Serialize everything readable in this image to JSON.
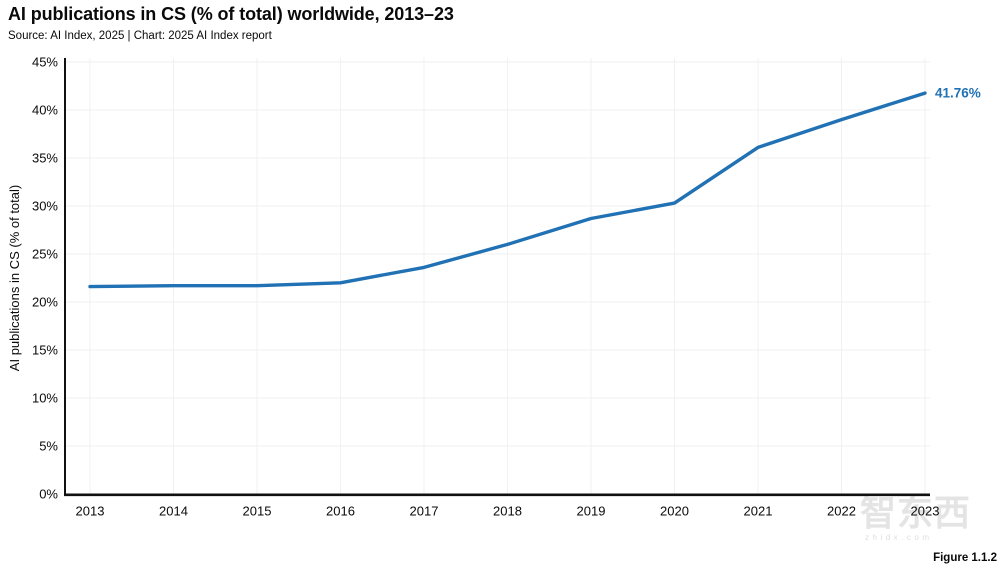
{
  "header": {
    "title": "AI publications in CS (% of total) worldwide, 2013–23",
    "source_line": "Source: AI Index, 2025 | Chart: 2025 AI Index report"
  },
  "chart_data": {
    "type": "line",
    "title": "AI publications in CS (% of total) worldwide, 2013–23",
    "x": [
      2013,
      2014,
      2015,
      2016,
      2017,
      2018,
      2019,
      2020,
      2021,
      2022,
      2023
    ],
    "series": [
      {
        "name": "AI publications in CS (% of total)",
        "values": [
          21.6,
          21.7,
          21.7,
          22.0,
          23.6,
          26.0,
          28.7,
          30.3,
          36.1,
          39.0,
          41.76
        ],
        "color": "#2171b5"
      }
    ],
    "end_label": "41.76%",
    "xlabel": "",
    "ylabel": "AI publications in CS (% of total)",
    "ylim": [
      0,
      45
    ],
    "ytick_step": 5,
    "ytick_suffix": "%",
    "grid": true,
    "legend": "none"
  },
  "watermark": {
    "text": "智东西",
    "subtext": "zhidx.com"
  },
  "footer": {
    "figure_label": "Figure 1.1.2"
  }
}
